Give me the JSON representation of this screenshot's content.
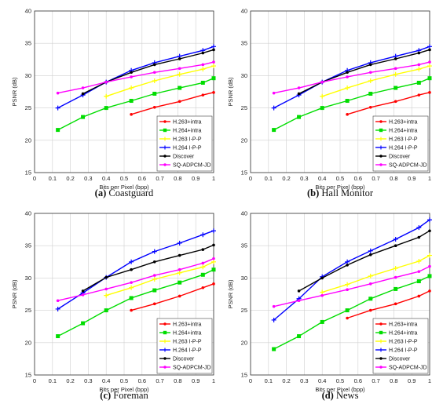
{
  "chart_data": [
    {
      "type": "line",
      "caption_letter": "(a)",
      "caption_text": "Coastguard",
      "xlabel": "Bits per Pixel (bpp)",
      "ylabel": "PSNR (dB)",
      "xlim": [
        0,
        1
      ],
      "ylim": [
        15,
        40
      ],
      "xticks": [
        "0",
        "0.1",
        "0.2",
        "0.3",
        "0.4",
        "0.5",
        "0.6",
        "0.7",
        "0.8",
        "0.9",
        "1"
      ],
      "yticks": [
        "15",
        "20",
        "25",
        "30",
        "35",
        "40"
      ],
      "grid": true,
      "legend_position": "bottom-right",
      "series": [
        {
          "name": "H.263+intra",
          "color": "#ff0000",
          "marker": "dot",
          "x": [
            0.54,
            0.67,
            0.81,
            0.94,
            1.0
          ],
          "y": [
            24.0,
            25.1,
            26.0,
            27.0,
            27.4
          ]
        },
        {
          "name": "H.264+intra",
          "color": "#00dd00",
          "marker": "square",
          "x": [
            0.13,
            0.27,
            0.4,
            0.54,
            0.67,
            0.81,
            0.94,
            1.0
          ],
          "y": [
            21.6,
            23.6,
            25.0,
            26.1,
            27.2,
            28.1,
            28.9,
            29.6
          ]
        },
        {
          "name": "H.263 I-P-P",
          "color": "#ffff00",
          "marker": "plus",
          "x": [
            0.4,
            0.54,
            0.67,
            0.81,
            0.94,
            1.0
          ],
          "y": [
            26.8,
            28.1,
            29.2,
            30.2,
            31.0,
            31.5
          ]
        },
        {
          "name": "H.264 I-P-P",
          "color": "#0000ff",
          "marker": "plus",
          "x": [
            0.13,
            0.27,
            0.4,
            0.54,
            0.67,
            0.81,
            0.94,
            1.0
          ],
          "y": [
            25.0,
            27.0,
            29.0,
            30.8,
            32.0,
            33.0,
            33.9,
            34.5
          ]
        },
        {
          "name": "Discover",
          "color": "#000000",
          "marker": "dot",
          "x": [
            0.27,
            0.4,
            0.54,
            0.67,
            0.81,
            0.94,
            1.0
          ],
          "y": [
            27.2,
            29.0,
            30.5,
            31.7,
            32.6,
            33.5,
            34.0
          ]
        },
        {
          "name": "SQ-ADPCM-JD",
          "color": "#ff00ff",
          "marker": "dot",
          "x": [
            0.13,
            0.27,
            0.4,
            0.54,
            0.67,
            0.81,
            0.94,
            1.0
          ],
          "y": [
            27.3,
            28.1,
            29.0,
            29.8,
            30.5,
            31.1,
            31.7,
            32.1
          ]
        }
      ]
    },
    {
      "type": "line",
      "caption_letter": "(b)",
      "caption_text": "Hall Monitor",
      "xlabel": "Bits per Pixel (bpp)",
      "ylabel": "PSNR (dB)",
      "xlim": [
        0,
        1
      ],
      "ylim": [
        15,
        40
      ],
      "xticks": [
        "0",
        "0.1",
        "0.2",
        "0.3",
        "0.4",
        "0.5",
        "0.6",
        "0.7",
        "0.8",
        "0.9",
        "1"
      ],
      "yticks": [
        "15",
        "20",
        "25",
        "30",
        "35",
        "40"
      ],
      "grid": true,
      "legend_position": "bottom-right",
      "series": [
        {
          "name": "H.263+intra",
          "color": "#ff0000",
          "marker": "dot",
          "x": [
            0.54,
            0.67,
            0.81,
            0.94,
            1.0
          ],
          "y": [
            24.0,
            25.1,
            26.0,
            27.0,
            27.4
          ]
        },
        {
          "name": "H.264+intra",
          "color": "#00dd00",
          "marker": "square",
          "x": [
            0.13,
            0.27,
            0.4,
            0.54,
            0.67,
            0.81,
            0.94,
            1.0
          ],
          "y": [
            21.6,
            23.6,
            25.0,
            26.1,
            27.2,
            28.1,
            28.9,
            29.6
          ]
        },
        {
          "name": "H.263 I-P-P",
          "color": "#ffff00",
          "marker": "plus",
          "x": [
            0.4,
            0.54,
            0.67,
            0.81,
            0.94,
            1.0
          ],
          "y": [
            26.8,
            28.1,
            29.2,
            30.2,
            31.0,
            31.5
          ]
        },
        {
          "name": "H.264 I-P-P",
          "color": "#0000ff",
          "marker": "plus",
          "x": [
            0.13,
            0.27,
            0.4,
            0.54,
            0.67,
            0.81,
            0.94,
            1.0
          ],
          "y": [
            25.0,
            27.0,
            29.0,
            30.8,
            32.0,
            33.0,
            33.9,
            34.5
          ]
        },
        {
          "name": "Discover",
          "color": "#000000",
          "marker": "dot",
          "x": [
            0.27,
            0.4,
            0.54,
            0.67,
            0.81,
            0.94,
            1.0
          ],
          "y": [
            27.2,
            29.0,
            30.5,
            31.7,
            32.6,
            33.5,
            34.0
          ]
        },
        {
          "name": "SQ-ADPCM-JD",
          "color": "#ff00ff",
          "marker": "dot",
          "x": [
            0.13,
            0.27,
            0.4,
            0.54,
            0.67,
            0.81,
            0.94,
            1.0
          ],
          "y": [
            27.3,
            28.1,
            29.0,
            29.8,
            30.5,
            31.1,
            31.7,
            32.1
          ]
        }
      ]
    },
    {
      "type": "line",
      "caption_letter": "(c)",
      "caption_text": "Foreman",
      "xlabel": "Bits per Pixel (bpp)",
      "ylabel": "PSNR (dB)",
      "xlim": [
        0,
        1
      ],
      "ylim": [
        15,
        40
      ],
      "xticks": [
        "0",
        "0.1",
        "0.2",
        "0.3",
        "0.4",
        "0.5",
        "0.6",
        "0.7",
        "0.8",
        "0.9",
        "1"
      ],
      "yticks": [
        "15",
        "20",
        "25",
        "30",
        "35",
        "40"
      ],
      "grid": true,
      "legend_position": "bottom-right",
      "series": [
        {
          "name": "H.263+intra",
          "color": "#ff0000",
          "marker": "dot",
          "x": [
            0.54,
            0.67,
            0.81,
            0.94,
            1.0
          ],
          "y": [
            25.0,
            26.0,
            27.2,
            28.5,
            29.1
          ]
        },
        {
          "name": "H.264+intra",
          "color": "#00dd00",
          "marker": "square",
          "x": [
            0.13,
            0.27,
            0.4,
            0.54,
            0.67,
            0.81,
            0.94,
            1.0
          ],
          "y": [
            21.0,
            23.0,
            25.0,
            26.9,
            28.1,
            29.3,
            30.5,
            31.3
          ]
        },
        {
          "name": "H.263 I-P-P",
          "color": "#ffff00",
          "marker": "plus",
          "x": [
            0.4,
            0.54,
            0.67,
            0.81,
            0.94,
            1.0
          ],
          "y": [
            27.3,
            28.5,
            29.8,
            30.8,
            31.7,
            32.5
          ]
        },
        {
          "name": "H.264 I-P-P",
          "color": "#0000ff",
          "marker": "plus",
          "x": [
            0.13,
            0.27,
            0.4,
            0.54,
            0.67,
            0.81,
            0.94,
            1.0
          ],
          "y": [
            25.2,
            27.7,
            30.1,
            32.5,
            34.1,
            35.4,
            36.7,
            37.3
          ]
        },
        {
          "name": "Discover",
          "color": "#000000",
          "marker": "dot",
          "x": [
            0.27,
            0.4,
            0.54,
            0.67,
            0.81,
            0.94,
            1.0
          ],
          "y": [
            28.0,
            30.1,
            31.3,
            32.5,
            33.5,
            34.4,
            35.1
          ]
        },
        {
          "name": "SQ-ADPCM-JD",
          "color": "#ff00ff",
          "marker": "dot",
          "x": [
            0.13,
            0.27,
            0.4,
            0.54,
            0.67,
            0.81,
            0.94,
            1.0
          ],
          "y": [
            26.5,
            27.4,
            28.3,
            29.3,
            30.4,
            31.3,
            32.3,
            33.0
          ]
        }
      ]
    },
    {
      "type": "line",
      "caption_letter": "(d)",
      "caption_text": "News",
      "xlabel": "Bits per Pixel (bpp)",
      "ylabel": "PSNR (dB)",
      "xlim": [
        0,
        1
      ],
      "ylim": [
        15,
        40
      ],
      "xticks": [
        "0",
        "0.1",
        "0.2",
        "0.3",
        "0.4",
        "0.5",
        "0.6",
        "0.7",
        "0.8",
        "0.9",
        "1"
      ],
      "yticks": [
        "15",
        "20",
        "25",
        "30",
        "35",
        "40"
      ],
      "grid": true,
      "legend_position": "bottom-right",
      "series": [
        {
          "name": "H.263+intra",
          "color": "#ff0000",
          "marker": "dot",
          "x": [
            0.54,
            0.67,
            0.81,
            0.94,
            1.0
          ],
          "y": [
            23.8,
            25.0,
            26.0,
            27.2,
            28.0
          ]
        },
        {
          "name": "H.264+intra",
          "color": "#00dd00",
          "marker": "square",
          "x": [
            0.13,
            0.27,
            0.4,
            0.54,
            0.67,
            0.81,
            0.94,
            1.0
          ],
          "y": [
            19.0,
            21.0,
            23.2,
            25.0,
            26.8,
            28.3,
            29.5,
            30.3
          ]
        },
        {
          "name": "H.263 I-P-P",
          "color": "#ffff00",
          "marker": "plus",
          "x": [
            0.4,
            0.54,
            0.67,
            0.81,
            0.94,
            1.0
          ],
          "y": [
            27.8,
            29.0,
            30.3,
            31.5,
            32.6,
            33.5
          ]
        },
        {
          "name": "H.264 I-P-P",
          "color": "#0000ff",
          "marker": "plus",
          "x": [
            0.13,
            0.27,
            0.4,
            0.54,
            0.67,
            0.81,
            0.94,
            1.0
          ],
          "y": [
            23.5,
            26.8,
            30.2,
            32.5,
            34.2,
            36.0,
            37.8,
            39.0
          ]
        },
        {
          "name": "Discover",
          "color": "#000000",
          "marker": "dot",
          "x": [
            0.27,
            0.4,
            0.54,
            0.67,
            0.81,
            0.94,
            1.0
          ],
          "y": [
            28.0,
            30.0,
            32.0,
            33.6,
            35.0,
            36.3,
            37.3
          ]
        },
        {
          "name": "SQ-ADPCM-JD",
          "color": "#ff00ff",
          "marker": "dot",
          "x": [
            0.13,
            0.27,
            0.4,
            0.54,
            0.67,
            0.81,
            0.94,
            1.0
          ],
          "y": [
            25.6,
            26.5,
            27.3,
            28.2,
            29.1,
            30.1,
            31.0,
            31.8
          ]
        }
      ]
    }
  ]
}
